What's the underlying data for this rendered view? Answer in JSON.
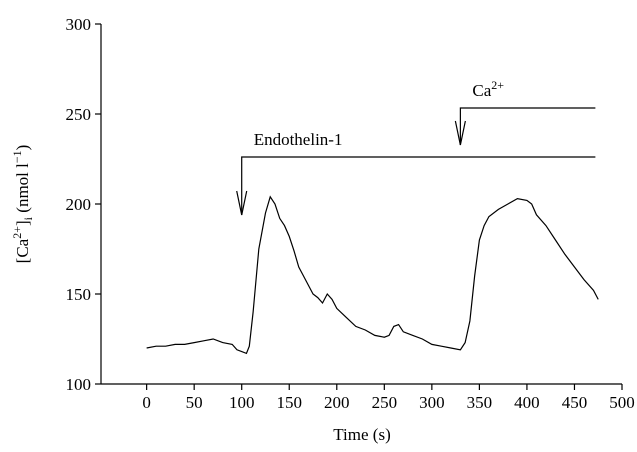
{
  "chart_data": {
    "type": "line",
    "xlabel": "Time (s)",
    "ylabel_parts": [
      "[Ca",
      "2+",
      "]",
      "i",
      " (nmol l",
      "−1",
      ")"
    ],
    "x": [
      0,
      10,
      20,
      30,
      40,
      50,
      60,
      70,
      80,
      90,
      95,
      100,
      105,
      108,
      112,
      118,
      125,
      130,
      135,
      140,
      145,
      150,
      155,
      160,
      165,
      170,
      175,
      180,
      185,
      190,
      195,
      200,
      210,
      220,
      230,
      240,
      250,
      255,
      260,
      265,
      270,
      280,
      290,
      300,
      310,
      320,
      330,
      335,
      340,
      345,
      350,
      355,
      360,
      370,
      380,
      390,
      400,
      405,
      410,
      420,
      430,
      440,
      450,
      460,
      470,
      475
    ],
    "values": [
      120,
      121,
      121,
      122,
      122,
      123,
      124,
      125,
      123,
      122,
      119,
      118,
      117,
      121,
      140,
      175,
      195,
      204,
      200,
      192,
      188,
      182,
      174,
      165,
      160,
      155,
      150,
      148,
      145,
      150,
      147,
      142,
      137,
      132,
      130,
      127,
      126,
      127,
      132,
      133,
      129,
      127,
      125,
      122,
      121,
      120,
      119,
      123,
      135,
      160,
      180,
      188,
      193,
      197,
      200,
      203,
      202,
      200,
      194,
      188,
      180,
      172,
      165,
      158,
      152,
      147
    ],
    "color": "#000000",
    "xlim": [
      -48,
      500
    ],
    "xticks": [
      0,
      50,
      100,
      150,
      200,
      250,
      300,
      350,
      400,
      450,
      500
    ],
    "ylim": [
      100,
      300
    ],
    "yticks": [
      100,
      150,
      200,
      250,
      300
    ],
    "annotations": [
      {
        "text_parts": [
          "Endothelin-1"
        ],
        "x": 100,
        "x_end": 472
      },
      {
        "text_parts": [
          "Ca",
          "2+"
        ],
        "x": 330,
        "x_end": 472
      }
    ]
  }
}
